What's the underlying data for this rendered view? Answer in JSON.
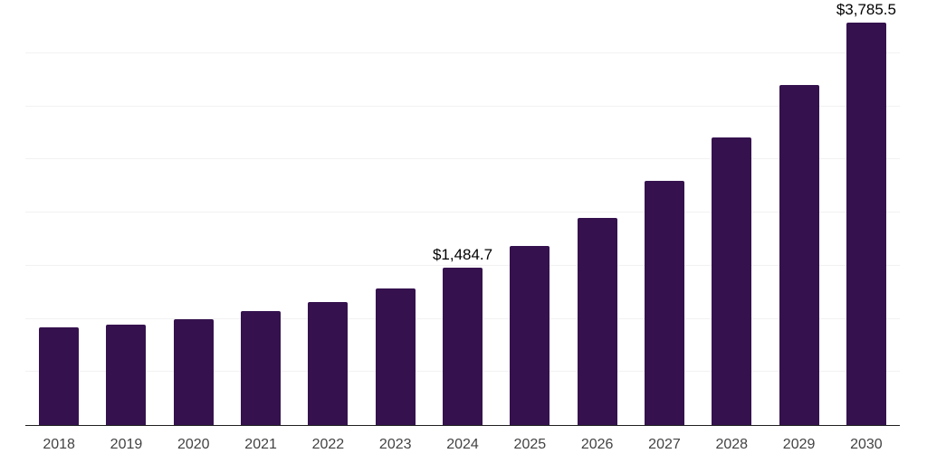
{
  "chart": {
    "background": "#ffffff",
    "bar_color": "#35124e",
    "axis_line_color": "#1f1f1f",
    "gridline_color": "#f2f2f2",
    "tick_label_color": "#434343",
    "data_label_color": "#000000"
  },
  "chart_data": {
    "type": "bar",
    "title": "",
    "xlabel": "",
    "ylabel": "",
    "categories": [
      "2018",
      "2019",
      "2020",
      "2021",
      "2022",
      "2023",
      "2024",
      "2025",
      "2026",
      "2027",
      "2028",
      "2029",
      "2030"
    ],
    "values": [
      920,
      945,
      1000,
      1070,
      1160,
      1285,
      1484.7,
      1686,
      1950,
      2295,
      2705,
      3200,
      3785.5
    ],
    "data_labels": [
      "",
      "",
      "",
      "",
      "",
      "",
      "$1,484.7",
      "",
      "",
      "",
      "",
      "",
      "$3,785.5"
    ],
    "ylim": [
      0,
      4000
    ],
    "gridline_step": 500,
    "grid": "horizontal",
    "legend": "none",
    "y_axis_tick_labels_visible": false,
    "annotations": [
      {
        "category": "2024",
        "text": "$1,484.7"
      },
      {
        "category": "2030",
        "text": "$3,785.5"
      }
    ]
  }
}
